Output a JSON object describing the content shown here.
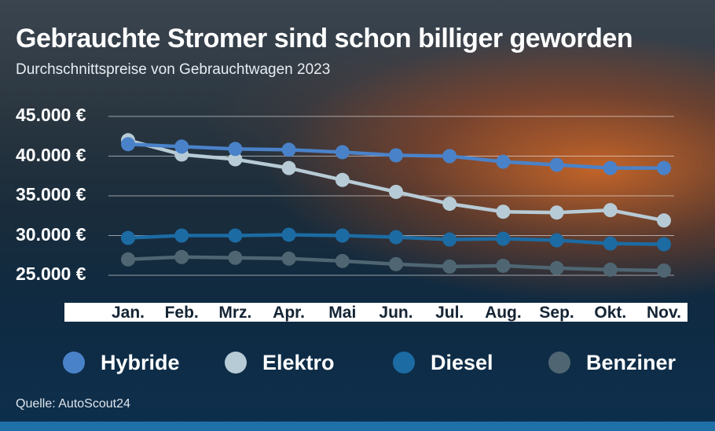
{
  "title": "Gebrauchte Stromer sind schon billiger geworden",
  "subtitle": "Durchschnittspreise von Gebrauchtwagen 2023",
  "source": "Quelle: AutoScout24",
  "chart_data": {
    "type": "line",
    "title": "Gebrauchte Stromer sind schon billiger geworden",
    "subtitle": "Durchschnittspreise von Gebrauchtwagen 2023",
    "categories": [
      "Jan.",
      "Feb.",
      "Mrz.",
      "Apr.",
      "Mai",
      "Jun.",
      "Jul.",
      "Aug.",
      "Sep.",
      "Okt.",
      "Nov."
    ],
    "y_ticks": [
      {
        "value": 45000,
        "label": "45.000 €"
      },
      {
        "value": 40000,
        "label": "40.000 €"
      },
      {
        "value": 35000,
        "label": "35.000 €"
      },
      {
        "value": 30000,
        "label": "30.000 €"
      },
      {
        "value": 25000,
        "label": "25.000 €"
      }
    ],
    "ylim": [
      23000,
      46000
    ],
    "grid": true,
    "legend_position": "bottom",
    "series": [
      {
        "name": "Hybride",
        "color": "#4a82c9",
        "values": [
          41500,
          41200,
          40900,
          40800,
          40500,
          40100,
          40000,
          39300,
          38900,
          38500,
          38500
        ]
      },
      {
        "name": "Elektro",
        "color": "#b7cbd6",
        "values": [
          42000,
          40200,
          39600,
          38500,
          37000,
          35500,
          34000,
          33000,
          32900,
          33200,
          31900
        ]
      },
      {
        "name": "Diesel",
        "color": "#1c6ba3",
        "values": [
          29700,
          30000,
          30000,
          30100,
          30000,
          29800,
          29500,
          29600,
          29400,
          29000,
          28900
        ]
      },
      {
        "name": "Benziner",
        "color": "#4f6672",
        "values": [
          27000,
          27300,
          27200,
          27100,
          26800,
          26400,
          26100,
          26200,
          25900,
          25700,
          25600
        ]
      }
    ]
  }
}
